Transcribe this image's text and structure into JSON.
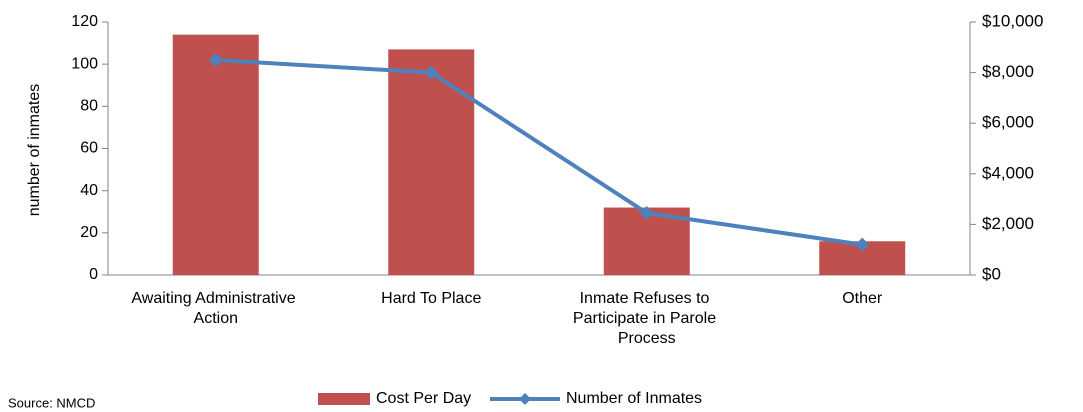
{
  "chart_data": {
    "type": "bar_line",
    "categories": [
      "Awaiting Administrative Action",
      "Hard To Place",
      "Inmate Refuses to Participate in Parole Process",
      "Other"
    ],
    "series": [
      {
        "name": "Cost Per Day",
        "type": "bar",
        "color": "#c0504d",
        "values": [
          114,
          107,
          32,
          16
        ]
      },
      {
        "name": "Number of Inmates",
        "type": "line",
        "axis": "y2",
        "color": "#4f81bd",
        "values": [
          8500,
          8000,
          2450,
          1200
        ]
      }
    ],
    "ylabel": "number of inmates",
    "ylim": [
      0,
      120
    ],
    "yticks": [
      0,
      20,
      40,
      60,
      80,
      100,
      120
    ],
    "y2lim": [
      0,
      10000
    ],
    "y2ticks": [
      {
        "value": 0,
        "label": "$0"
      },
      {
        "value": 2000,
        "label": "$2,000"
      },
      {
        "value": 4000,
        "label": "$4,000"
      },
      {
        "value": 6000,
        "label": "$6,000"
      },
      {
        "value": 8000,
        "label": "$8,000"
      },
      {
        "value": 10000,
        "label": "$10,000"
      }
    ],
    "grid": false,
    "legend": "bottom",
    "source": "Source: NMCD"
  }
}
